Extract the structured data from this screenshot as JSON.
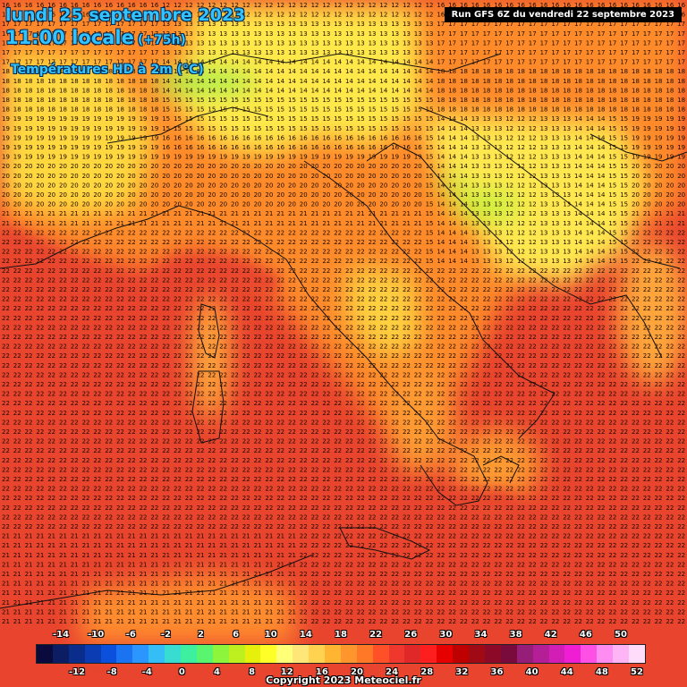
{
  "header": {
    "date_line": "lundi 25 septembre 2023",
    "time_line": "11:00 locale",
    "lead_time": "(+75h)",
    "field_name": "Températures HD à 2m (°C)"
  },
  "run_info": "Run GFS 6Z du vendredi 22 septembre 2023",
  "copyright": "Copyright 2023 Meteociel.fr",
  "legend": {
    "top_labels": [
      "-14",
      "-10",
      "-6",
      "-2",
      "2",
      "6",
      "10",
      "14",
      "18",
      "22",
      "26",
      "30",
      "34",
      "38",
      "42",
      "46",
      "50"
    ],
    "bottom_labels": [
      "-12",
      "-8",
      "-4",
      "0",
      "4",
      "8",
      "12",
      "16",
      "20",
      "24",
      "28",
      "32",
      "36",
      "40",
      "44",
      "48",
      "52"
    ],
    "colors": [
      "#0a0a3c",
      "#0c1d63",
      "#0a2d8c",
      "#0b3cb4",
      "#0a50dc",
      "#1a73f0",
      "#2b96ff",
      "#34bef5",
      "#38dcd0",
      "#3cf0a0",
      "#5af56e",
      "#8cf53c",
      "#beef1e",
      "#e6f00a",
      "#ffff28",
      "#ffff78",
      "#ffe678",
      "#ffd250",
      "#ffb432",
      "#ff962d",
      "#ff7828",
      "#ff5028",
      "#f0372d",
      "#e12828",
      "#ff1e1e",
      "#e60000",
      "#be0000",
      "#a00a14",
      "#8c0a28",
      "#780a3c",
      "#961e78",
      "#b41e96",
      "#d21eb4",
      "#f01ed2",
      "#ff50e6",
      "#ff8cf0",
      "#ffb4f5",
      "#ffdcfa"
    ]
  }
}
